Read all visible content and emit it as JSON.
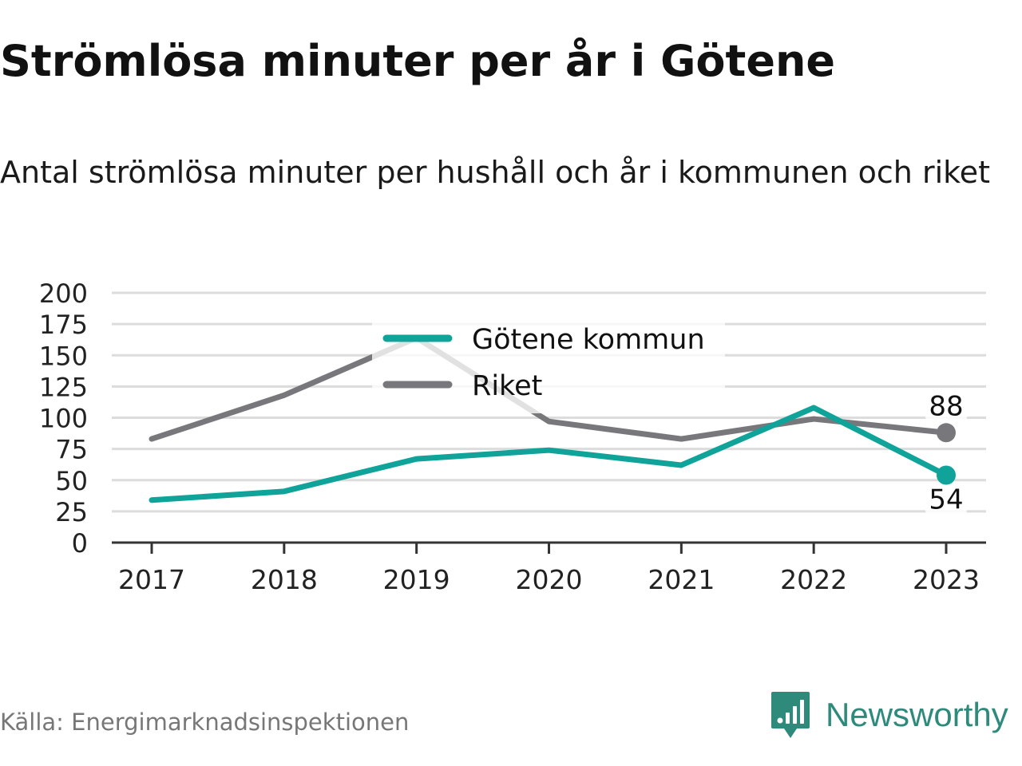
{
  "title": "Strömlösa minuter per år i Götene",
  "subtitle": "Antal strömlösa minuter per hushåll och år i kommunen och riket",
  "source": "Källa: Energimarknadsinspektionen",
  "brand": {
    "name": "Newsworthy",
    "icon": "newsworthy-logo-icon",
    "color": "#2e8a7b"
  },
  "colors": {
    "gotene": "#0fa39a",
    "riket": "#78787c",
    "grid": "#dcdcdc",
    "axis": "#333333"
  },
  "chart_data": {
    "type": "line",
    "x": [
      "2017",
      "2018",
      "2019",
      "2020",
      "2021",
      "2022",
      "2023"
    ],
    "ylim": [
      0,
      200
    ],
    "yticks": [
      "0",
      "25",
      "50",
      "75",
      "100",
      "125",
      "150",
      "175",
      "200"
    ],
    "grid": true,
    "legend_position": "top-center",
    "series": [
      {
        "name": "Götene kommun",
        "values": [
          34,
          41,
          67,
          74,
          62,
          108,
          54
        ],
        "end_label": "54",
        "color": "#0fa39a"
      },
      {
        "name": "Riket",
        "values": [
          83,
          118,
          164,
          97,
          83,
          99,
          88
        ],
        "end_label": "88",
        "color": "#78787c"
      }
    ]
  }
}
